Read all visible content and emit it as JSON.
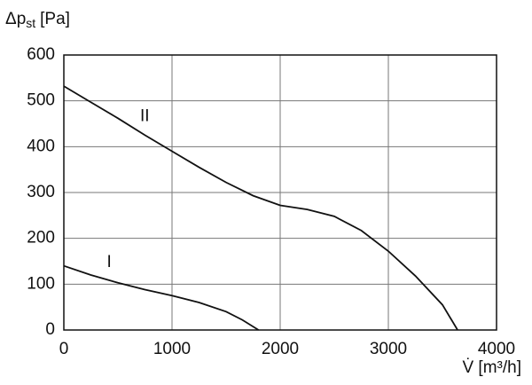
{
  "chart_data": {
    "type": "line",
    "y_label": {
      "symbol": "Δp",
      "subscript": "st",
      "unit": "[Pa]"
    },
    "x_label": "V̇ [m³/h]",
    "xlim": [
      0,
      4000
    ],
    "xticks": [
      0,
      1000,
      2000,
      3000,
      4000
    ],
    "ylim": [
      0,
      600
    ],
    "yticks": [
      0,
      100,
      200,
      300,
      400,
      500,
      600
    ],
    "grid": true,
    "series": [
      {
        "name": "I",
        "color": "#111111",
        "x": [
          0,
          250,
          500,
          750,
          1000,
          1250,
          1500,
          1650,
          1800
        ],
        "values": [
          140,
          120,
          103,
          88,
          75,
          60,
          40,
          22,
          0
        ]
      },
      {
        "name": "II",
        "color": "#111111",
        "x": [
          0,
          250,
          500,
          750,
          1000,
          1250,
          1500,
          1750,
          2000,
          2250,
          2500,
          2750,
          3000,
          3250,
          3500,
          3640
        ],
        "values": [
          532,
          497,
          462,
          425,
          390,
          355,
          322,
          293,
          272,
          263,
          248,
          217,
          172,
          118,
          55,
          0
        ]
      }
    ]
  }
}
